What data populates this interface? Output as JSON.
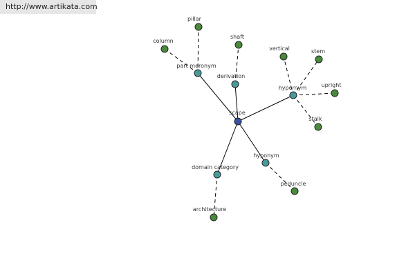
{
  "header": {
    "url": "http://www.artikata.com"
  },
  "nodes": [
    {
      "label": "scape"
    },
    {
      "label": "part meronym"
    },
    {
      "label": "derivation"
    },
    {
      "label": "hypernym"
    },
    {
      "label": "domain category"
    },
    {
      "label": "hyponym"
    },
    {
      "label": "pillar"
    },
    {
      "label": "column"
    },
    {
      "label": "shaft"
    },
    {
      "label": "vertical"
    },
    {
      "label": "stem"
    },
    {
      "label": "upright"
    },
    {
      "label": "stalk"
    },
    {
      "label": "architecture"
    },
    {
      "label": "peduncle"
    }
  ]
}
